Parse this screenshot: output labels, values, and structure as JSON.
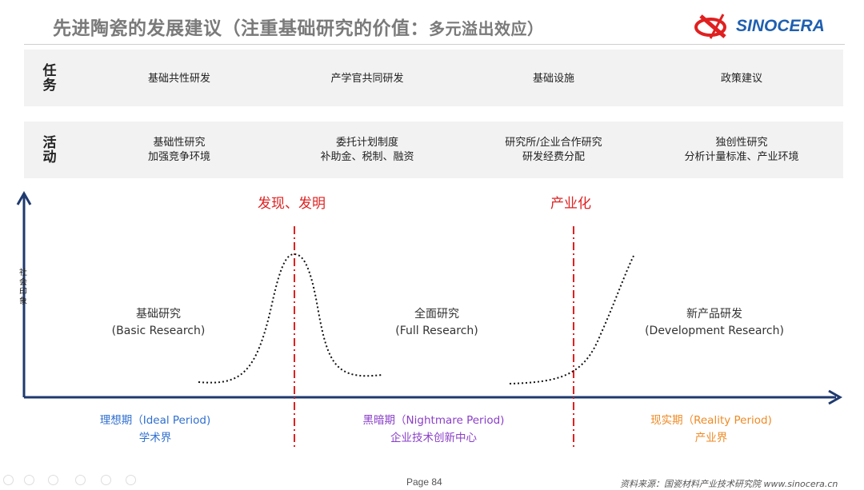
{
  "header": {
    "title": "先进陶瓷的发展建议（注重基础研究的价值：",
    "title_sub": "多元溢出效应）",
    "logo_text": "SINOCERA"
  },
  "rows": [
    {
      "label": "任务",
      "cells": [
        [
          "基础共性研发"
        ],
        [
          "产学官共同研发"
        ],
        [
          "基础设施"
        ],
        [
          "政策建议"
        ]
      ]
    },
    {
      "label": "活动",
      "cells": [
        [
          "基础性研究",
          "加强竞争环境"
        ],
        [
          "委托计划制度",
          "补助金、税制、融资"
        ],
        [
          "研究所/企业合作研究",
          "研发经费分配"
        ],
        [
          "独创性研究",
          "分析计量标准、产业环境"
        ]
      ]
    }
  ],
  "diagram": {
    "y_axis_label": "社会印象",
    "milestones": [
      "发现、发明",
      "产业化"
    ],
    "phases": [
      [
        "基础研究",
        "(Basic Research)"
      ],
      [
        "全面研究",
        "(Full Research)"
      ],
      [
        "新产品研发",
        "(Development Research)"
      ]
    ],
    "periods": [
      {
        "name": "理想期（Ideal Period)",
        "sub": "学术界",
        "color": "#2f6fd0"
      },
      {
        "name": "黑暗期（Nightmare Period)",
        "sub": "企业技术创新中心",
        "color": "#8a3fc8"
      },
      {
        "name": "现实期（Reality Period)",
        "sub": "产业界",
        "color": "#f08a24"
      }
    ],
    "colors": {
      "axis": "#1f3a6e",
      "milestone": "#e02020"
    }
  },
  "footer": {
    "page": "Page 84",
    "source": "资料来源：国瓷材料产业技术研究院  www.sinocera.cn"
  }
}
